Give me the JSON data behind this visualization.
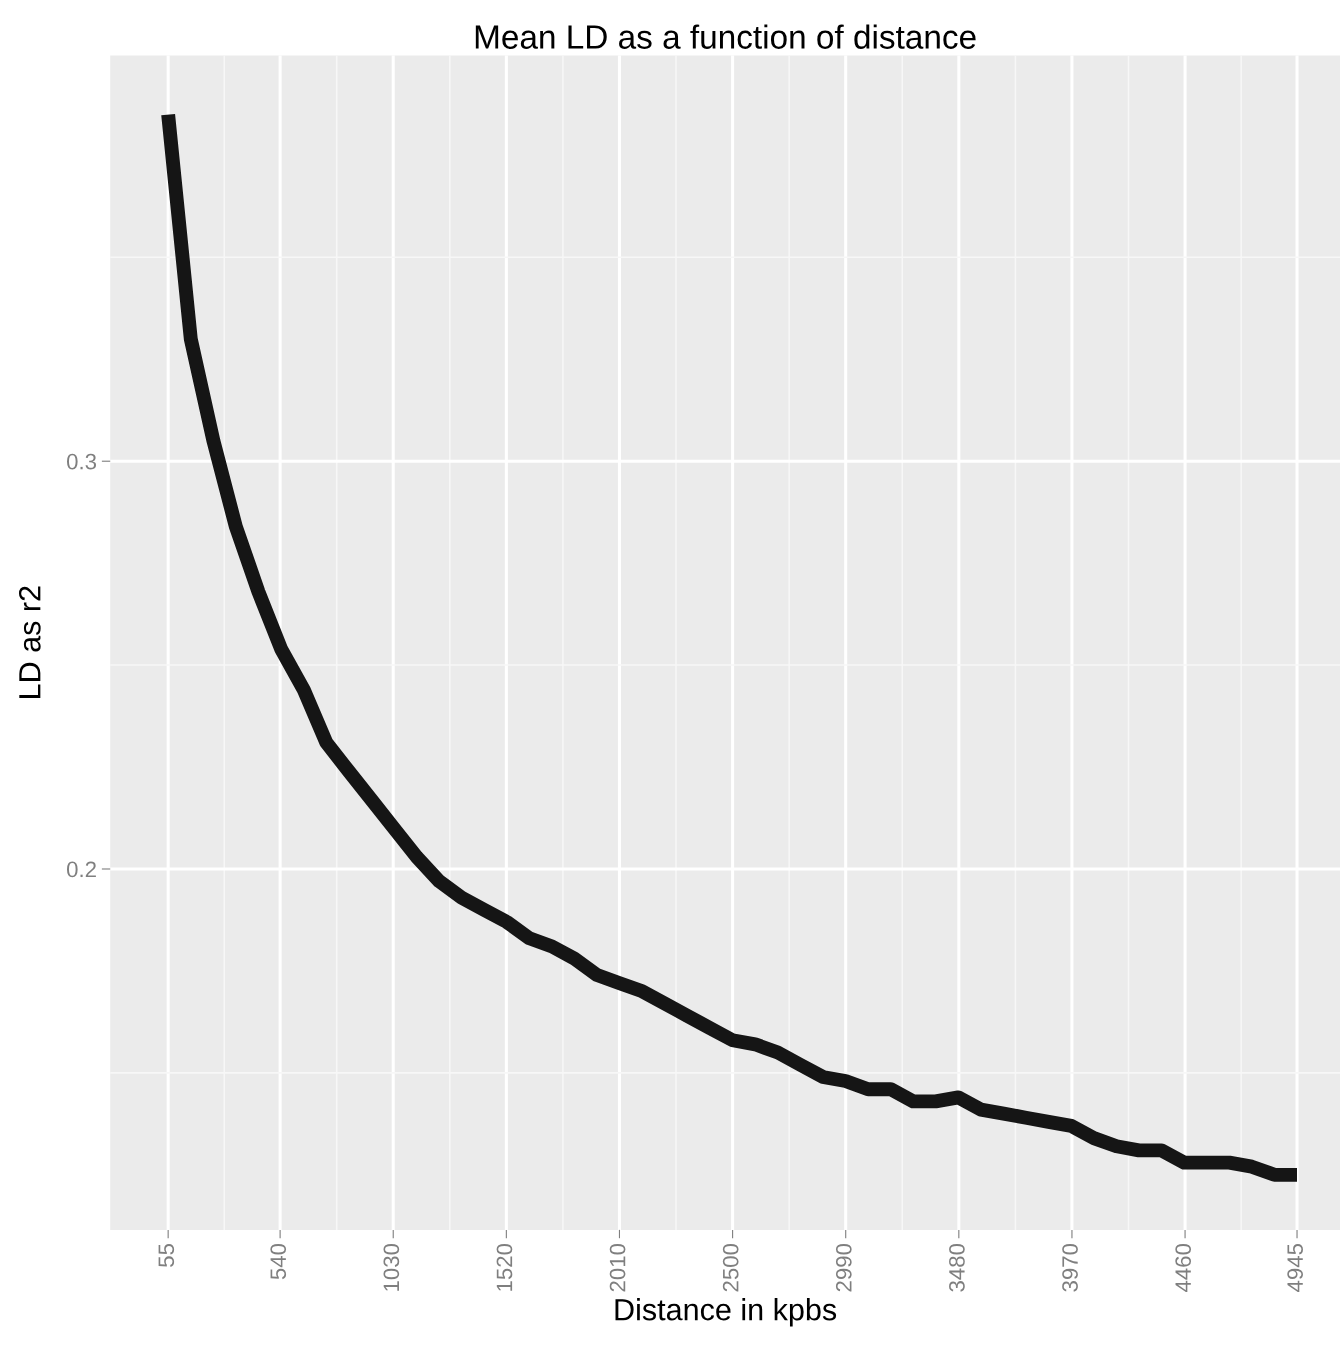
{
  "chart_data": {
    "type": "line",
    "title": "Mean LD as a function of distance",
    "xlabel": "Distance in kpbs",
    "ylabel": "LD as r2",
    "x": [
      55,
      153,
      251,
      348,
      446,
      544,
      642,
      740,
      837,
      935,
      1033,
      1131,
      1229,
      1326,
      1424,
      1522,
      1620,
      1718,
      1815,
      1913,
      2011,
      2109,
      2207,
      2304,
      2402,
      2500,
      2598,
      2696,
      2793,
      2891,
      2989,
      3087,
      3185,
      3282,
      3380,
      3478,
      3576,
      3674,
      3771,
      3869,
      3967,
      4065,
      4163,
      4260,
      4358,
      4456,
      4554,
      4652,
      4749,
      4847,
      4945
    ],
    "series": [
      {
        "color": "#151515",
        "values": [
          0.385,
          0.33,
          0.305,
          0.284,
          0.268,
          0.254,
          0.244,
          0.231,
          0.224,
          0.217,
          0.21,
          0.203,
          0.197,
          0.193,
          0.19,
          0.187,
          0.183,
          0.181,
          0.178,
          0.174,
          0.172,
          0.17,
          0.167,
          0.164,
          0.161,
          0.158,
          0.157,
          0.155,
          0.152,
          0.149,
          0.148,
          0.146,
          0.146,
          0.143,
          0.143,
          0.144,
          0.141,
          0.14,
          0.139,
          0.138,
          0.137,
          0.134,
          0.132,
          0.131,
          0.131,
          0.128,
          0.128,
          0.128,
          0.127,
          0.125,
          0.125
        ]
      }
    ],
    "xlim": [
      -196,
      5131
    ],
    "ylim": [
      0.1115,
      0.3995
    ],
    "xticks": [
      55,
      {
        "value": 298,
        "label": null
      },
      540,
      {
        "value": 785,
        "label": null
      },
      1030,
      {
        "value": 1275,
        "label": null
      },
      1520,
      {
        "value": 1765,
        "label": null
      },
      2010,
      {
        "value": 2255,
        "label": null
      },
      2500,
      {
        "value": 2745,
        "label": null
      },
      2990,
      {
        "value": 3235,
        "label": null
      },
      3480,
      {
        "value": 3725,
        "label": null
      },
      3970,
      {
        "value": 4215,
        "label": null
      },
      4460,
      {
        "value": 4703,
        "label": null
      },
      4945
    ],
    "yticks": [
      {
        "value": 0.15,
        "label": null
      },
      0.2,
      {
        "value": 0.25,
        "label": null
      },
      0.3,
      {
        "value": 0.35,
        "label": null
      }
    ],
    "grid": true,
    "line_style": "solid",
    "marker": "none"
  }
}
